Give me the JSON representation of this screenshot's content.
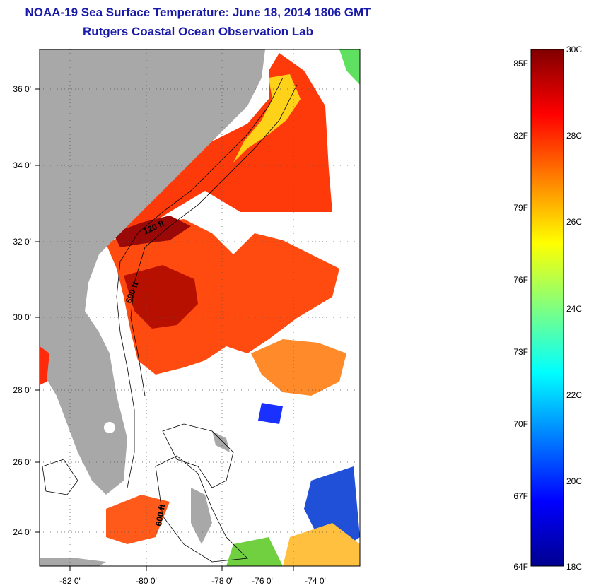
{
  "title": "NOAA-19 Sea Surface Temperature:  June 18, 2014 1806 GMT",
  "subtitle": "Rutgers Coastal Ocean Observation Lab",
  "map": {
    "lon_ticks": [
      "-82 0'",
      "-80 0'",
      "-78 0'",
      "-76 0'",
      "-74 0'"
    ],
    "lat_ticks": [
      "36 0'",
      "34 0'",
      "32 0'",
      "30 0'",
      "28 0'",
      "26 0'",
      "24 0'"
    ],
    "contour_labels": [
      "120 ft",
      "600 ft",
      "600 ft"
    ],
    "land_color": "#a8a8a8",
    "cloud_color": "#ffffff"
  },
  "colorbar": {
    "fahrenheit_labels": [
      "85F",
      "82F",
      "79F",
      "76F",
      "73F",
      "70F",
      "67F",
      "64F"
    ],
    "celsius_labels": [
      "30C",
      "28C",
      "26C",
      "24C",
      "22C",
      "20C",
      "18C"
    ],
    "colors": [
      "#00008f",
      "#0000ff",
      "#0080ff",
      "#00ffff",
      "#80ff80",
      "#ffff00",
      "#ff8000",
      "#ff0000",
      "#800000"
    ]
  }
}
